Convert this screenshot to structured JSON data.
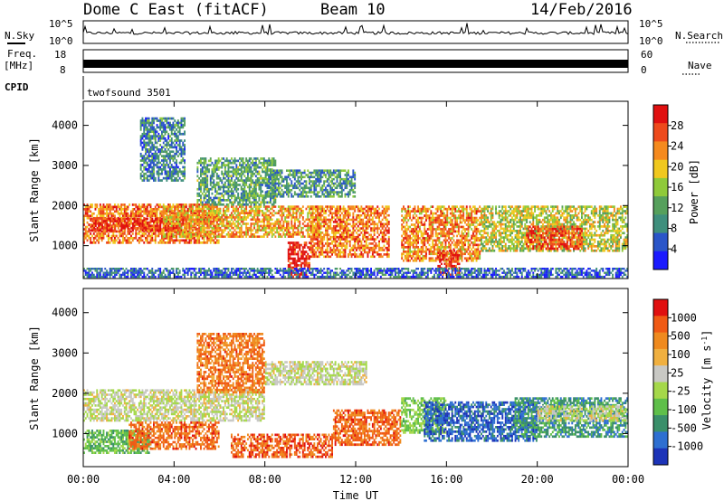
{
  "header": {
    "site_title": "Dome C East (fitACF)",
    "beam": "Beam 10",
    "date": "14/Feb/2016"
  },
  "top_panels": {
    "nsky_label": "N.Sky",
    "nsky_ticks": [
      "10^5",
      "10^0"
    ],
    "nsearch_label": "N.Search",
    "nsearch_ticks": [
      "10^5",
      "10^0"
    ],
    "freq_label_line1": "Freq.",
    "freq_label_line2": "[MHz]",
    "freq_ticks": [
      "18",
      "8"
    ],
    "nave_label": "Nave",
    "nave_ticks": [
      "60",
      "0"
    ],
    "cpid_label": "CPID",
    "cpid_value": "twofsound 3501"
  },
  "chart_data": [
    {
      "type": "heatmap",
      "name": "power",
      "ylabel": "Slant Range [km]",
      "y_ticks": [
        1000,
        2000,
        3000,
        4000
      ],
      "ylim": [
        180,
        4600
      ],
      "x_ticks": [
        "00:00",
        "04:00",
        "08:00",
        "12:00",
        "16:00",
        "20:00",
        "00:00"
      ],
      "xlim_hours": [
        0,
        24
      ],
      "colorbar": {
        "label": "Power [dB]",
        "ticks": [
          "4",
          "8",
          "12",
          "16",
          "20",
          "24",
          "28"
        ],
        "colors": [
          "#1a1aff",
          "#2a55c8",
          "#3f8f7d",
          "#56a05c",
          "#8fca3a",
          "#f0c81e",
          "#f58a1e",
          "#ee4a1c",
          "#e01010"
        ]
      },
      "regions": [
        {
          "t0": 0.0,
          "t1": 6.0,
          "r0": 1050,
          "r1": 2050,
          "level": 0.8
        },
        {
          "t0": 0.3,
          "t1": 4.5,
          "r0": 1350,
          "r1": 1700,
          "level": 0.95
        },
        {
          "t0": 3.5,
          "t1": 10.5,
          "r0": 1200,
          "r1": 2000,
          "level": 0.7
        },
        {
          "t0": 5.0,
          "t1": 8.5,
          "r0": 2000,
          "r1": 3200,
          "level": 0.35
        },
        {
          "t0": 8.0,
          "t1": 12.0,
          "r0": 2200,
          "r1": 2900,
          "level": 0.3
        },
        {
          "t0": 9.0,
          "t1": 10.0,
          "r0": 200,
          "r1": 1100,
          "level": 1.0
        },
        {
          "t0": 10.0,
          "t1": 13.5,
          "r0": 700,
          "r1": 2000,
          "level": 0.8
        },
        {
          "t0": 14.0,
          "t1": 17.5,
          "r0": 600,
          "r1": 2000,
          "level": 0.75
        },
        {
          "t0": 15.6,
          "t1": 16.6,
          "r0": 250,
          "r1": 900,
          "level": 0.95
        },
        {
          "t0": 17.5,
          "t1": 24.0,
          "r0": 850,
          "r1": 2000,
          "level": 0.55
        },
        {
          "t0": 19.5,
          "t1": 22.0,
          "r0": 900,
          "r1": 1500,
          "level": 0.9
        },
        {
          "t0": 0.0,
          "t1": 24.0,
          "r0": 200,
          "r1": 450,
          "level": 0.15
        },
        {
          "t0": 2.5,
          "t1": 4.5,
          "r0": 2600,
          "r1": 4200,
          "level": 0.25
        }
      ]
    },
    {
      "type": "heatmap",
      "name": "velocity",
      "ylabel": "Slant Range [km]",
      "y_ticks": [
        1000,
        2000,
        3000,
        4000
      ],
      "ylim": [
        180,
        4600
      ],
      "x_ticks": [
        "00:00",
        "04:00",
        "08:00",
        "12:00",
        "16:00",
        "20:00",
        "00:00"
      ],
      "xlim_hours": [
        0,
        24
      ],
      "xlabel": "Time UT",
      "colorbar": {
        "label": "Velocity [m s^-1]",
        "ticks": [
          "1000",
          "500",
          "100",
          "25",
          "-25",
          "-100",
          "-500",
          "-1000"
        ],
        "colors": [
          "#1c33b8",
          "#2e6fd1",
          "#3a8f6a",
          "#5fbf4a",
          "#a5d84a",
          "#c8c8c4",
          "#f0b040",
          "#ef8a1e",
          "#f05a14",
          "#e01010"
        ]
      },
      "regions": [
        {
          "t0": 0.0,
          "t1": 8.0,
          "r0": 1300,
          "r1": 2100,
          "v": -0.05
        },
        {
          "t0": 0.0,
          "t1": 3.0,
          "r0": 500,
          "r1": 1100,
          "v": 0.35
        },
        {
          "t0": 2.0,
          "t1": 6.0,
          "r0": 600,
          "r1": 1300,
          "v": -0.7
        },
        {
          "t0": 6.5,
          "t1": 11.0,
          "r0": 400,
          "r1": 1000,
          "v": -0.75
        },
        {
          "t0": 8.0,
          "t1": 12.5,
          "r0": 2200,
          "r1": 2800,
          "v": -0.05
        },
        {
          "t0": 5.0,
          "t1": 8.0,
          "r0": 2000,
          "r1": 3500,
          "v": -0.65
        },
        {
          "t0": 11.0,
          "t1": 14.0,
          "r0": 700,
          "r1": 1600,
          "v": -0.7
        },
        {
          "t0": 14.0,
          "t1": 16.0,
          "r0": 1000,
          "r1": 1900,
          "v": 0.25
        },
        {
          "t0": 15.0,
          "t1": 20.0,
          "r0": 800,
          "r1": 1800,
          "v": 0.8
        },
        {
          "t0": 19.0,
          "t1": 24.0,
          "r0": 900,
          "r1": 1900,
          "v": 0.55
        },
        {
          "t0": 20.0,
          "t1": 24.0,
          "r0": 1300,
          "r1": 1700,
          "v": -0.05
        }
      ]
    }
  ]
}
